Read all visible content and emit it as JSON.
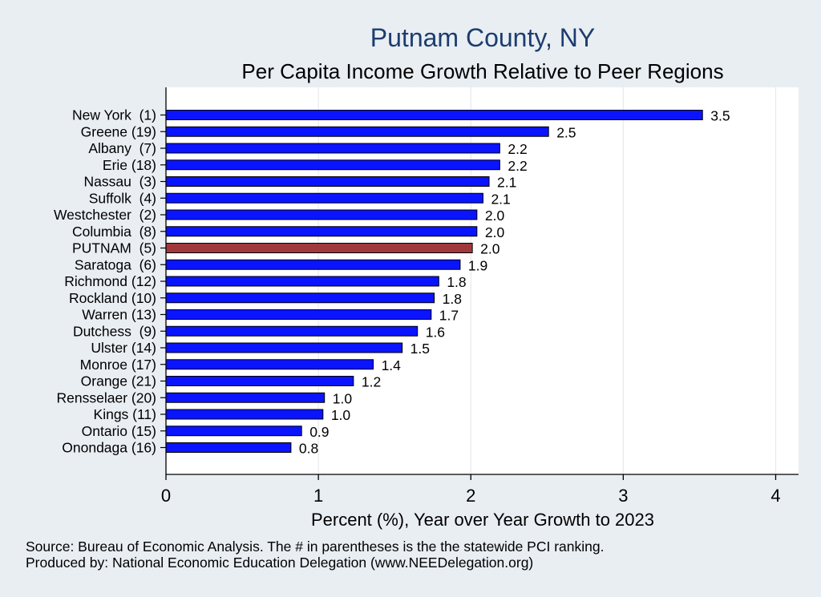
{
  "chart_data": {
    "type": "bar",
    "orientation": "horizontal",
    "title": "Putnam County, NY",
    "subtitle": "Per Capita Income Growth Relative to Peer Regions",
    "xlabel": "Percent (%), Year over Year Growth to 2023",
    "ylabel": "",
    "xlim": [
      0,
      4.15
    ],
    "xticks": [
      0,
      1,
      2,
      3,
      4
    ],
    "grid": true,
    "categories": [
      "New York  (1)",
      "Greene (19)",
      "Albany  (7)",
      "Erie (18)",
      "Nassau  (3)",
      "Suffolk  (4)",
      "Westchester  (2)",
      "Columbia  (8)",
      "PUTNAM  (5)",
      "Saratoga  (6)",
      "Richmond (12)",
      "Rockland (10)",
      "Warren (13)",
      "Dutchess  (9)",
      "Ulster (14)",
      "Monroe (17)",
      "Orange (21)",
      "Rensselaer (20)",
      "Kings (11)",
      "Ontario (15)",
      "Onondaga (16)"
    ],
    "values": [
      3.52,
      2.51,
      2.19,
      2.19,
      2.12,
      2.08,
      2.04,
      2.04,
      2.01,
      1.93,
      1.79,
      1.76,
      1.74,
      1.65,
      1.55,
      1.36,
      1.23,
      1.04,
      1.03,
      0.89,
      0.82
    ],
    "data_labels": [
      "3.5",
      "2.5",
      "2.2",
      "2.2",
      "2.1",
      "2.1",
      "2.0",
      "2.0",
      "2.0",
      "1.9",
      "1.8",
      "1.8",
      "1.7",
      "1.6",
      "1.5",
      "1.4",
      "1.2",
      "1.0",
      "1.0",
      "0.9",
      "0.8"
    ],
    "highlight_index": 8,
    "colors": {
      "bar": "#0a14ff",
      "highlight": "#a0393c",
      "bar_edge": "#000000",
      "title": "#1c3d6e",
      "grid": "#e6e9ee",
      "plot_bg": "#ffffff",
      "page_bg": "#e9eef3"
    }
  },
  "footer": {
    "source": "Source: Bureau of Economic Analysis. The # in parentheses is the the statewide PCI ranking.",
    "producer": "Produced by: National Economic Education Delegation (www.NEEDelegation.org)"
  }
}
